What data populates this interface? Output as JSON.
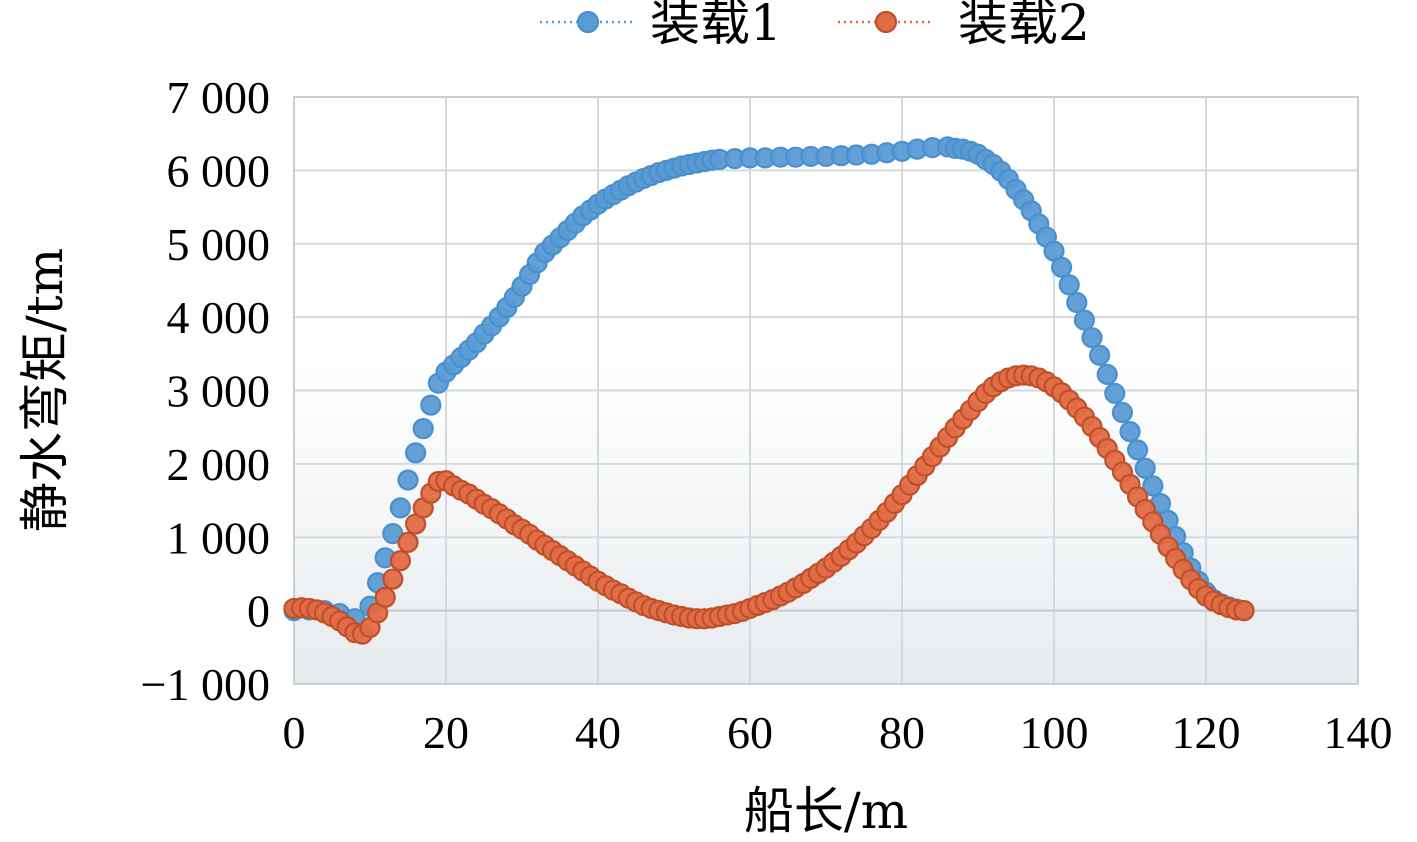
{
  "chart_data": {
    "type": "scatter",
    "title": "",
    "xlabel": "船长/m",
    "ylabel": "静水弯矩/tm",
    "xlim": [
      0,
      140
    ],
    "ylim": [
      -1000,
      7000
    ],
    "x_ticks": [
      "0",
      "20",
      "40",
      "60",
      "80",
      "100",
      "120",
      "140"
    ],
    "y_ticks": [
      "−1 000",
      "0",
      "1 000",
      "2 000",
      "3 000",
      "4 000",
      "5 000",
      "6 000",
      "7 000"
    ],
    "grid": true,
    "legend_position": "top-center",
    "series": [
      {
        "name": "装载1",
        "color": "#5B9BD5",
        "edge_color": "#4A90CC",
        "points": [
          [
            0,
            0
          ],
          [
            2,
            10
          ],
          [
            4,
            0
          ],
          [
            6,
            -40
          ],
          [
            8,
            -110
          ],
          [
            10,
            60
          ],
          [
            11,
            380
          ],
          [
            12,
            720
          ],
          [
            13,
            1050
          ],
          [
            14,
            1400
          ],
          [
            15,
            1780
          ],
          [
            16,
            2150
          ],
          [
            17,
            2480
          ],
          [
            18,
            2800
          ],
          [
            19,
            3100
          ],
          [
            20,
            3250
          ],
          [
            21,
            3350
          ],
          [
            22,
            3450
          ],
          [
            23,
            3550
          ],
          [
            24,
            3650
          ],
          [
            25,
            3770
          ],
          [
            26,
            3880
          ],
          [
            27,
            4000
          ],
          [
            28,
            4130
          ],
          [
            29,
            4270
          ],
          [
            30,
            4420
          ],
          [
            31,
            4580
          ],
          [
            32,
            4740
          ],
          [
            33,
            4880
          ],
          [
            34,
            4980
          ],
          [
            35,
            5080
          ],
          [
            36,
            5180
          ],
          [
            37,
            5280
          ],
          [
            38,
            5380
          ],
          [
            39,
            5460
          ],
          [
            40,
            5540
          ],
          [
            41,
            5610
          ],
          [
            42,
            5670
          ],
          [
            43,
            5730
          ],
          [
            44,
            5790
          ],
          [
            45,
            5840
          ],
          [
            46,
            5890
          ],
          [
            47,
            5930
          ],
          [
            48,
            5970
          ],
          [
            49,
            6000
          ],
          [
            50,
            6030
          ],
          [
            51,
            6060
          ],
          [
            52,
            6080
          ],
          [
            53,
            6100
          ],
          [
            54,
            6120
          ],
          [
            55,
            6140
          ],
          [
            56,
            6150
          ],
          [
            58,
            6160
          ],
          [
            60,
            6170
          ],
          [
            62,
            6170
          ],
          [
            64,
            6180
          ],
          [
            66,
            6180
          ],
          [
            68,
            6190
          ],
          [
            70,
            6190
          ],
          [
            72,
            6200
          ],
          [
            74,
            6210
          ],
          [
            76,
            6220
          ],
          [
            78,
            6240
          ],
          [
            80,
            6260
          ],
          [
            82,
            6290
          ],
          [
            84,
            6310
          ],
          [
            86,
            6320
          ],
          [
            87,
            6300
          ],
          [
            88,
            6290
          ],
          [
            89,
            6260
          ],
          [
            90,
            6220
          ],
          [
            91,
            6150
          ],
          [
            92,
            6080
          ],
          [
            93,
            5990
          ],
          [
            94,
            5880
          ],
          [
            95,
            5740
          ],
          [
            96,
            5600
          ],
          [
            97,
            5450
          ],
          [
            98,
            5270
          ],
          [
            99,
            5090
          ],
          [
            100,
            4900
          ],
          [
            101,
            4680
          ],
          [
            102,
            4440
          ],
          [
            103,
            4200
          ],
          [
            104,
            3960
          ],
          [
            105,
            3720
          ],
          [
            106,
            3480
          ],
          [
            107,
            3220
          ],
          [
            108,
            2960
          ],
          [
            109,
            2700
          ],
          [
            110,
            2440
          ],
          [
            111,
            2190
          ],
          [
            112,
            1940
          ],
          [
            113,
            1700
          ],
          [
            114,
            1460
          ],
          [
            115,
            1230
          ],
          [
            116,
            1010
          ],
          [
            117,
            790
          ],
          [
            118,
            580
          ],
          [
            119,
            400
          ],
          [
            120,
            250
          ],
          [
            121,
            150
          ],
          [
            122,
            90
          ],
          [
            123,
            50
          ],
          [
            124,
            20
          ],
          [
            125,
            0
          ]
        ]
      },
      {
        "name": "装载2",
        "color": "#E06C45",
        "edge_color": "#C0502A",
        "points": [
          [
            0,
            30
          ],
          [
            1,
            40
          ],
          [
            2,
            30
          ],
          [
            3,
            10
          ],
          [
            4,
            -30
          ],
          [
            5,
            -80
          ],
          [
            6,
            -140
          ],
          [
            7,
            -220
          ],
          [
            8,
            -300
          ],
          [
            9,
            -320
          ],
          [
            10,
            -230
          ],
          [
            11,
            -30
          ],
          [
            12,
            180
          ],
          [
            13,
            430
          ],
          [
            14,
            680
          ],
          [
            15,
            930
          ],
          [
            16,
            1180
          ],
          [
            17,
            1400
          ],
          [
            18,
            1600
          ],
          [
            19,
            1760
          ],
          [
            20,
            1770
          ],
          [
            21,
            1700
          ],
          [
            22,
            1640
          ],
          [
            23,
            1590
          ],
          [
            24,
            1520
          ],
          [
            25,
            1450
          ],
          [
            26,
            1390
          ],
          [
            27,
            1320
          ],
          [
            28,
            1250
          ],
          [
            29,
            1170
          ],
          [
            30,
            1110
          ],
          [
            31,
            1040
          ],
          [
            32,
            960
          ],
          [
            33,
            890
          ],
          [
            34,
            820
          ],
          [
            35,
            750
          ],
          [
            36,
            680
          ],
          [
            37,
            610
          ],
          [
            38,
            540
          ],
          [
            39,
            470
          ],
          [
            40,
            400
          ],
          [
            41,
            340
          ],
          [
            42,
            280
          ],
          [
            43,
            230
          ],
          [
            44,
            170
          ],
          [
            45,
            120
          ],
          [
            46,
            70
          ],
          [
            47,
            30
          ],
          [
            48,
            0
          ],
          [
            49,
            -30
          ],
          [
            50,
            -60
          ],
          [
            51,
            -80
          ],
          [
            52,
            -100
          ],
          [
            53,
            -110
          ],
          [
            54,
            -110
          ],
          [
            55,
            -100
          ],
          [
            56,
            -80
          ],
          [
            57,
            -60
          ],
          [
            58,
            -40
          ],
          [
            59,
            -10
          ],
          [
            60,
            30
          ],
          [
            61,
            70
          ],
          [
            62,
            110
          ],
          [
            63,
            150
          ],
          [
            64,
            200
          ],
          [
            65,
            250
          ],
          [
            66,
            310
          ],
          [
            67,
            370
          ],
          [
            68,
            440
          ],
          [
            69,
            510
          ],
          [
            70,
            580
          ],
          [
            71,
            660
          ],
          [
            72,
            740
          ],
          [
            73,
            830
          ],
          [
            74,
            920
          ],
          [
            75,
            1020
          ],
          [
            76,
            1120
          ],
          [
            77,
            1230
          ],
          [
            78,
            1340
          ],
          [
            79,
            1460
          ],
          [
            80,
            1580
          ],
          [
            81,
            1710
          ],
          [
            82,
            1840
          ],
          [
            83,
            1970
          ],
          [
            84,
            2100
          ],
          [
            85,
            2230
          ],
          [
            86,
            2360
          ],
          [
            87,
            2490
          ],
          [
            88,
            2610
          ],
          [
            89,
            2730
          ],
          [
            90,
            2850
          ],
          [
            91,
            2960
          ],
          [
            92,
            3050
          ],
          [
            93,
            3120
          ],
          [
            94,
            3170
          ],
          [
            95,
            3200
          ],
          [
            96,
            3210
          ],
          [
            97,
            3200
          ],
          [
            98,
            3170
          ],
          [
            99,
            3120
          ],
          [
            100,
            3050
          ],
          [
            101,
            2970
          ],
          [
            102,
            2870
          ],
          [
            103,
            2760
          ],
          [
            104,
            2640
          ],
          [
            105,
            2510
          ],
          [
            106,
            2360
          ],
          [
            107,
            2210
          ],
          [
            108,
            2050
          ],
          [
            109,
            1890
          ],
          [
            110,
            1720
          ],
          [
            111,
            1550
          ],
          [
            112,
            1380
          ],
          [
            113,
            1210
          ],
          [
            114,
            1040
          ],
          [
            115,
            870
          ],
          [
            116,
            710
          ],
          [
            117,
            560
          ],
          [
            118,
            420
          ],
          [
            119,
            300
          ],
          [
            120,
            200
          ],
          [
            121,
            130
          ],
          [
            122,
            80
          ],
          [
            123,
            40
          ],
          [
            124,
            10
          ],
          [
            125,
            0
          ]
        ]
      }
    ]
  }
}
